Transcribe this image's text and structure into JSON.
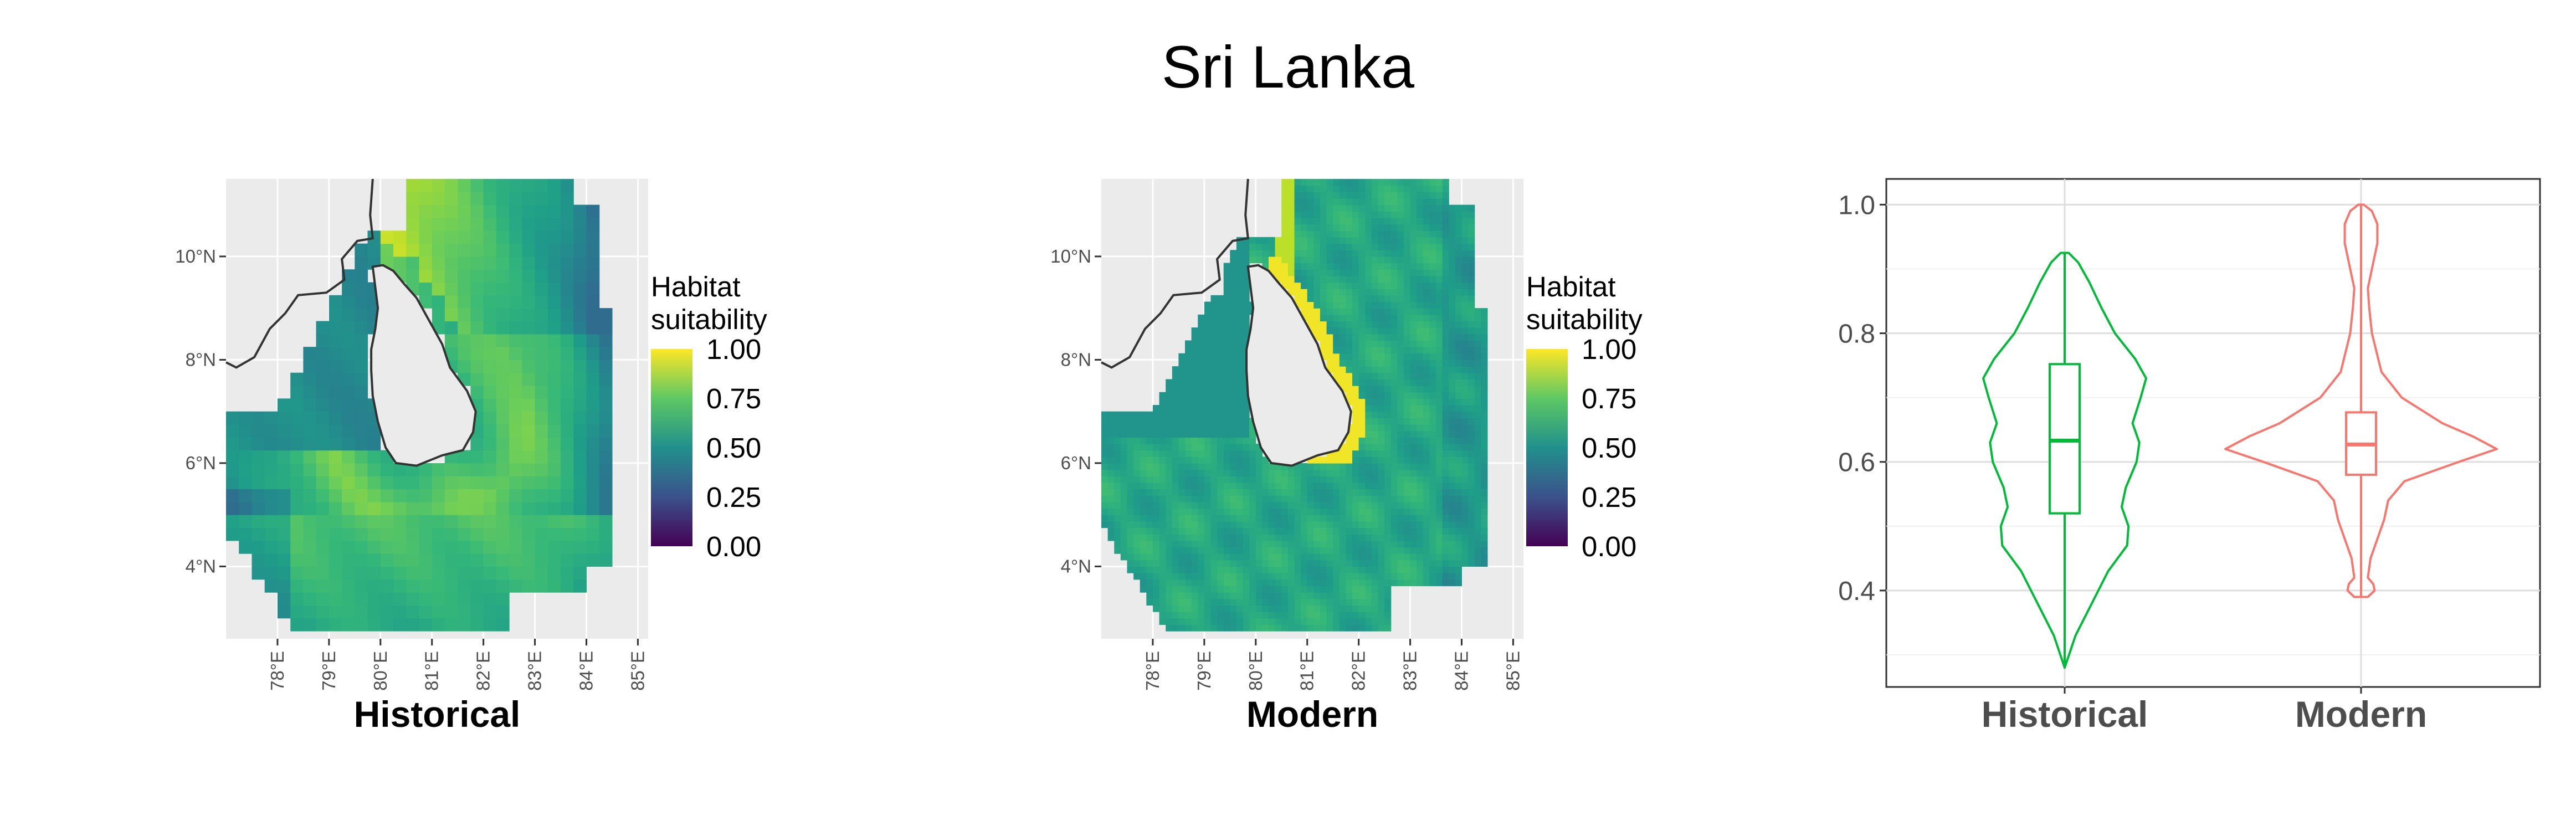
{
  "title": "Sri Lanka",
  "colors": {
    "historical": "#00BA38",
    "modern": "#F8766D",
    "panel_bg": "#EBEBEB",
    "coast": "#333333",
    "viridis": [
      "#440154",
      "#3B528B",
      "#21908C",
      "#5DC863",
      "#FDE725"
    ]
  },
  "chart_data": [
    {
      "type": "heatmap",
      "label": "Historical",
      "x_ticks": [
        "78°E",
        "79°E",
        "80°E",
        "81°E",
        "82°E",
        "83°E",
        "84°E",
        "85°E"
      ],
      "y_ticks": [
        "10°N",
        "8°N",
        "6°N",
        "4°N"
      ],
      "xlim": [
        77.0,
        85.2
      ],
      "ylim": [
        2.6,
        11.5
      ],
      "legend": {
        "title": [
          "Habitat",
          "suitability"
        ],
        "ticks": [
          "1.00",
          "0.75",
          "0.50",
          "0.25",
          "0.00"
        ],
        "range": [
          0,
          1
        ]
      }
    },
    {
      "type": "heatmap",
      "label": "Modern",
      "x_ticks": [
        "78°E",
        "79°E",
        "80°E",
        "81°E",
        "82°E",
        "83°E",
        "84°E",
        "85°E"
      ],
      "y_ticks": [
        "10°N",
        "8°N",
        "6°N",
        "4°N"
      ],
      "xlim": [
        77.0,
        85.2
      ],
      "ylim": [
        2.6,
        11.5
      ],
      "legend": {
        "title": [
          "Habitat",
          "suitability"
        ],
        "ticks": [
          "1.00",
          "0.75",
          "0.50",
          "0.25",
          "0.00"
        ],
        "range": [
          0,
          1
        ]
      }
    },
    {
      "type": "violin",
      "categories": [
        "Historical",
        "Modern"
      ],
      "y_ticks": [
        "1.0",
        "0.8",
        "0.6",
        "0.4"
      ],
      "ylim": [
        0.25,
        1.04
      ],
      "series": [
        {
          "name": "Historical",
          "min": 0.28,
          "q1": 0.52,
          "median": 0.633,
          "q3": 0.752,
          "max": 0.925,
          "density": [
            [
              0.28,
              0.0
            ],
            [
              0.33,
              0.08
            ],
            [
              0.38,
              0.2
            ],
            [
              0.43,
              0.32
            ],
            [
              0.47,
              0.46
            ],
            [
              0.5,
              0.47
            ],
            [
              0.53,
              0.42
            ],
            [
              0.56,
              0.45
            ],
            [
              0.6,
              0.53
            ],
            [
              0.63,
              0.55
            ],
            [
              0.66,
              0.5
            ],
            [
              0.7,
              0.56
            ],
            [
              0.73,
              0.6
            ],
            [
              0.76,
              0.52
            ],
            [
              0.8,
              0.37
            ],
            [
              0.84,
              0.27
            ],
            [
              0.88,
              0.18
            ],
            [
              0.91,
              0.1
            ],
            [
              0.925,
              0.03
            ]
          ]
        },
        {
          "name": "Modern",
          "min": 0.39,
          "q1": 0.58,
          "median": 0.627,
          "q3": 0.677,
          "max": 1.0,
          "density": [
            [
              0.39,
              0.05
            ],
            [
              0.4,
              0.1
            ],
            [
              0.41,
              0.09
            ],
            [
              0.42,
              0.05
            ],
            [
              0.45,
              0.07
            ],
            [
              0.48,
              0.12
            ],
            [
              0.51,
              0.17
            ],
            [
              0.54,
              0.2
            ],
            [
              0.57,
              0.32
            ],
            [
              0.6,
              0.72
            ],
            [
              0.62,
              1.0
            ],
            [
              0.64,
              0.82
            ],
            [
              0.66,
              0.6
            ],
            [
              0.7,
              0.3
            ],
            [
              0.74,
              0.15
            ],
            [
              0.8,
              0.08
            ],
            [
              0.84,
              0.06
            ],
            [
              0.87,
              0.05
            ],
            [
              0.9,
              0.08
            ],
            [
              0.94,
              0.12
            ],
            [
              0.97,
              0.12
            ],
            [
              0.99,
              0.08
            ],
            [
              1.0,
              0.02
            ]
          ]
        }
      ]
    }
  ]
}
